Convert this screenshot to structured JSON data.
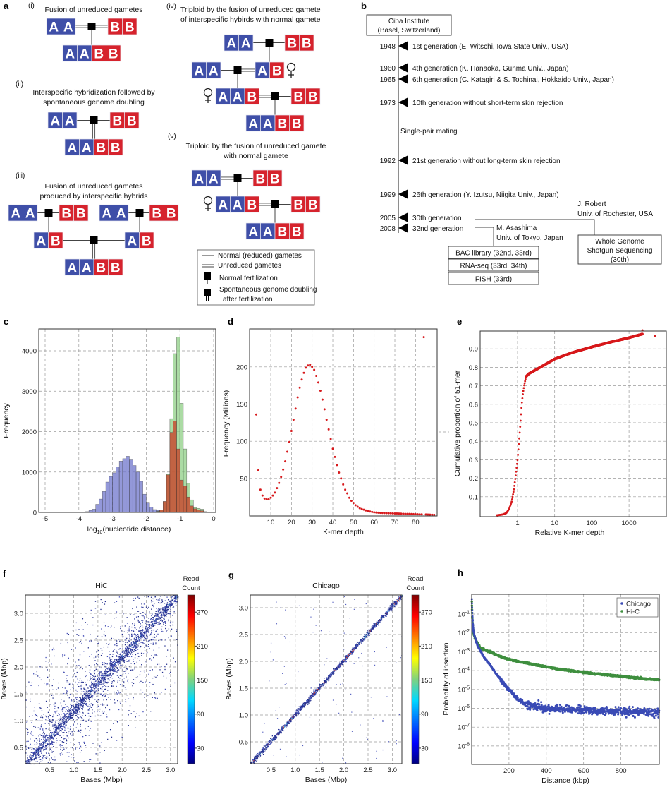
{
  "panel_labels": {
    "a": "a",
    "b": "b",
    "c": "c",
    "d": "d",
    "e": "e",
    "f": "f",
    "g": "g",
    "h": "h"
  },
  "diagram_a": {
    "colors": {
      "A": "#3f4fa8",
      "B": "#d6232d",
      "line": "#444444"
    },
    "panels": [
      {
        "id": "(i)",
        "title": [
          "Fusion of unreduced gametes"
        ],
        "genomes": [
          "AA",
          "BB",
          "AABB"
        ]
      },
      {
        "id": "(ii)",
        "title": [
          "Interspecific hybridization followed by",
          "spontaneous genome doubling"
        ],
        "genomes": [
          "AA",
          "BB",
          "AABB"
        ]
      },
      {
        "id": "(iii)",
        "title": [
          "Fusion of unreduced gametes",
          "produced by interspecific hybrids"
        ],
        "genomes": [
          "AA",
          "BB",
          "AA",
          "BB",
          "AB",
          "AB",
          "AABB"
        ]
      },
      {
        "id": "(iv)",
        "title": [
          "Triploid by the fusion of unreduced gamete",
          "of interspecific hybirds with normal gamete"
        ],
        "genomes": [
          "AA",
          "BB",
          "AA",
          "AB",
          "AAB",
          "BB",
          "AABB"
        ]
      },
      {
        "id": "(v)",
        "title": [
          "Triploid by the fusion of unreduced gamete",
          "with normal gamete"
        ],
        "genomes": [
          "AA",
          "BB",
          "AAB",
          "BB",
          "AABB"
        ]
      }
    ],
    "legend": [
      "Normal (reduced) gametes",
      "Unreduced gametes",
      "Normal fertilization",
      "Spontaneous genome doubling",
      "after fertilization"
    ]
  },
  "timeline_b": {
    "root": [
      "Ciba Institute",
      "(Basel, Switzerland)"
    ],
    "events": [
      {
        "year": "1948",
        "text": "1st generation (E. Witschi, Iowa State Univ., USA)"
      },
      {
        "year": "1960",
        "text": "4th generation (K. Hanaoka, Gunma Univ., Japan)"
      },
      {
        "year": "1965",
        "text": "6th generation (C. Katagiri & S. Tochinai, Hokkaido Univ., Japan)"
      },
      {
        "year": "1973",
        "text": "10th generation without short-term skin rejection"
      },
      {
        "year": "1992",
        "text": "21st generation without long-term skin rejection"
      },
      {
        "year": "1999",
        "text": "26th generation (Y. Izutsu, Niigita Univ., Japan)"
      },
      {
        "year": "2005",
        "text": "30th generation"
      },
      {
        "year": "2008",
        "text": "32nd generation"
      }
    ],
    "note": "Single-pair mating",
    "note_color": "#3b4fc0",
    "branch_robert": [
      "J. Robert",
      "Univ. of Rochester, USA"
    ],
    "robert_box": [
      "Whole Genome",
      "Shotgun Sequencing",
      "(30th)"
    ],
    "branch_asashima": [
      "M. Asashima",
      "Univ. of Tokyo, Japan"
    ],
    "asashima_boxes": [
      "BAC library (32nd, 33rd)",
      "RNA-seq (33rd, 34th)",
      "FISH (33rd)"
    ]
  },
  "chart_data": [
    {
      "type": "bar",
      "xlabel_parts": [
        "log",
        "10",
        "(nucleotide distance)"
      ],
      "ylabel": "Frequency",
      "xlim": [
        -5.2,
        0.05
      ],
      "ylim": [
        0,
        4550
      ],
      "xticks": [
        -5,
        -4,
        -3,
        -2,
        -1,
        0
      ],
      "xtick_labels": [
        "-5",
        "-4",
        "-3",
        "-2",
        "-1",
        "0"
      ],
      "yticks": [
        0,
        1000,
        2000,
        3000,
        4000
      ],
      "ytick_labels": [
        "0",
        "1000",
        "2000",
        "3000",
        "4000"
      ],
      "grid": true,
      "bin_width": 0.1,
      "series": [
        {
          "color": "#6f76cc",
          "x": [
            -4.05,
            -3.95,
            -3.85,
            -3.75,
            -3.65,
            -3.55,
            -3.45,
            -3.35,
            -3.25,
            -3.15,
            -3.05,
            -2.95,
            -2.85,
            -2.75,
            -2.65,
            -2.55,
            -2.45,
            -2.35,
            -2.25,
            -2.15,
            -2.05,
            -1.95,
            -1.85,
            -1.75,
            -1.65,
            -1.55
          ],
          "values": [
            5,
            5,
            10,
            20,
            50,
            80,
            200,
            330,
            520,
            750,
            890,
            980,
            1130,
            1270,
            1330,
            1390,
            1300,
            1160,
            1000,
            770,
            450,
            250,
            130,
            70,
            50,
            30
          ]
        },
        {
          "color": "#8fcf85",
          "x": [
            -1.65,
            -1.55,
            -1.45,
            -1.35,
            -1.25,
            -1.15,
            -1.05,
            -0.95,
            -0.85,
            -0.75,
            -0.65,
            -0.55,
            -0.45,
            -0.35,
            -0.25,
            -0.15
          ],
          "values": [
            30,
            60,
            270,
            950,
            2320,
            3930,
            4340,
            2700,
            1570,
            720,
            310,
            120,
            100,
            80,
            20,
            10
          ]
        },
        {
          "color": "#c8452a",
          "x": [
            -1.65,
            -1.55,
            -1.45,
            -1.35,
            -1.25,
            -1.15,
            -1.05,
            -0.95,
            -0.85,
            -0.75,
            -0.65,
            -0.55,
            -0.45,
            -0.35,
            -0.25,
            -0.15
          ],
          "values": [
            20,
            60,
            270,
            930,
            1980,
            2260,
            1570,
            800,
            650,
            380,
            160,
            90,
            60,
            40,
            10,
            5
          ]
        }
      ]
    },
    {
      "type": "scatter",
      "xlabel": "K-mer depth",
      "ylabel": "Frequency (Millions)",
      "xlim": [
        0,
        90.4
      ],
      "ylim": [
        0,
        251
      ],
      "xticks": [
        10,
        20,
        30,
        40,
        50,
        60,
        70,
        80
      ],
      "xtick_labels": [
        "10",
        "20",
        "30",
        "40",
        "50",
        "60",
        "70",
        "80"
      ],
      "yticks": [
        50,
        100,
        150,
        200
      ],
      "ytick_labels": [
        "50",
        "100",
        "150",
        "200"
      ],
      "grid": true,
      "color": "#d7191c",
      "x_start": 3,
      "x_step": 1,
      "values": [
        136,
        61,
        35,
        27,
        23,
        22,
        22,
        24,
        27,
        31,
        37,
        44,
        52,
        62,
        73,
        86,
        99,
        114,
        129,
        144,
        159,
        172,
        183,
        192,
        199,
        202,
        203,
        200,
        196,
        188,
        179,
        168,
        156,
        143,
        129,
        116,
        103,
        90,
        79,
        68,
        58,
        50,
        42,
        35,
        30,
        24,
        20,
        17,
        14,
        12,
        10,
        9,
        8,
        7,
        6,
        5.5,
        5,
        4.5,
        4.2,
        4,
        3.8,
        3.6,
        3.5,
        3.4,
        3.3,
        3.2,
        3.1,
        3,
        2.9,
        2.8,
        2.7,
        2.6,
        2.5,
        2.4,
        2.3,
        2.2,
        2.1,
        2.0,
        1.9,
        1.8,
        1.7,
        240,
        1.6,
        1.5,
        1.4,
        1.3,
        1.2
      ]
    },
    {
      "type": "scatter",
      "xlabel": "Relative K-mer depth",
      "ylabel": "Cumulative proportion of 51-mer",
      "xscale": "log",
      "xlim": [
        0.1,
        10000
      ],
      "ylim": [
        0,
        1.0
      ],
      "xticks": [
        1,
        10,
        100,
        1000
      ],
      "xtick_labels": [
        "1",
        "10",
        "100",
        "1000"
      ],
      "yticks": [
        0.1,
        0.2,
        0.3,
        0.4,
        0.5,
        0.6,
        0.7,
        0.8,
        0.9
      ],
      "ytick_labels": [
        "0.1",
        "0.2",
        "0.3",
        "0.4",
        "0.5",
        "0.6",
        "0.7",
        "0.8",
        "0.9"
      ],
      "grid": true,
      "color": "#d7191c",
      "points": [
        [
          0.28,
          0.0
        ],
        [
          0.4,
          0.004
        ],
        [
          0.5,
          0.012
        ],
        [
          0.6,
          0.035
        ],
        [
          0.7,
          0.075
        ],
        [
          0.8,
          0.14
        ],
        [
          0.9,
          0.22
        ],
        [
          1.0,
          0.3
        ],
        [
          1.1,
          0.4
        ],
        [
          1.2,
          0.5
        ],
        [
          1.3,
          0.6
        ],
        [
          1.4,
          0.66
        ],
        [
          1.5,
          0.7
        ],
        [
          1.7,
          0.75
        ],
        [
          2,
          0.765
        ],
        [
          3,
          0.785
        ],
        [
          5,
          0.81
        ],
        [
          10,
          0.845
        ],
        [
          30,
          0.88
        ],
        [
          100,
          0.91
        ],
        [
          300,
          0.935
        ],
        [
          1000,
          0.96
        ],
        [
          2300,
          0.98
        ]
      ],
      "outliers": [
        [
          2300,
          1.0
        ],
        [
          5000,
          0.97
        ]
      ]
    },
    {
      "type": "heatmap",
      "title": "HiC",
      "xlabel": "Bases (Mbp)",
      "ylabel": "Bases (Mbp)",
      "xlim": [
        0,
        3.15
      ],
      "ylim": [
        0.2,
        3.35
      ],
      "xticks": [
        0.5,
        1.0,
        1.5,
        2.0,
        2.5,
        3.0
      ],
      "xtick_labels": [
        "0.5",
        "1.0",
        "1.5",
        "2.0",
        "2.5",
        "3.0"
      ],
      "yticks": [
        0.5,
        1.0,
        1.5,
        2.0,
        2.5,
        3.0
      ],
      "ytick_labels": [
        "0.5",
        "1.0",
        "1.5",
        "2.0",
        "2.5",
        "3.0"
      ],
      "grid": true,
      "colorbar": {
        "label": [
          "Read",
          "Count"
        ],
        "colormap": "jet",
        "range": [
          0,
          300
        ],
        "ticks": [
          30,
          90,
          150,
          210,
          270
        ],
        "tick_labels": [
          "30",
          "90",
          "150",
          "210",
          "270"
        ]
      }
    },
    {
      "type": "heatmap",
      "title": "Chicago",
      "xlabel": "Bases (Mbp)",
      "ylabel": "Bases (Mbp)",
      "xlim": [
        0.07,
        3.2
      ],
      "ylim": [
        0.09,
        3.24
      ],
      "xticks": [
        0.5,
        1.0,
        1.5,
        2.0,
        2.5,
        3.0
      ],
      "xtick_labels": [
        "0.5",
        "1.0",
        "1.5",
        "2.0",
        "2.5",
        "3.0"
      ],
      "yticks": [
        0.5,
        1.0,
        1.5,
        2.0,
        2.5,
        3.0
      ],
      "ytick_labels": [
        "0.5",
        "1.0",
        "1.5",
        "2.0",
        "2.5",
        "3.0"
      ],
      "grid": true,
      "colorbar": {
        "label": [
          "Read",
          "Count"
        ],
        "colormap": "jet",
        "range": [
          0,
          300
        ],
        "ticks": [
          30,
          90,
          150,
          210,
          270
        ],
        "tick_labels": [
          "30",
          "90",
          "150",
          "210",
          "270"
        ]
      }
    },
    {
      "type": "scatter",
      "xlabel": "Distance (kbp)",
      "ylabel": "Probability of insertion",
      "yscale": "log",
      "xlim": [
        0,
        1005
      ],
      "ylim": [
        1e-09,
        1
      ],
      "xticks": [
        200,
        400,
        600,
        800
      ],
      "xtick_labels": [
        "200",
        "400",
        "600",
        "800"
      ],
      "yticks": [
        0.1,
        0.01,
        0.001,
        0.0001,
        1e-05,
        1e-06,
        1e-07,
        1e-08
      ],
      "ytick_base": "10",
      "ytick_exponents": [
        "-1",
        "-2",
        "-3",
        "-4",
        "-5",
        "-6",
        "-7",
        "-8"
      ],
      "grid": true,
      "legend_position": "top-right",
      "series": [
        {
          "name": "Chicago",
          "color": "#3a4bb5",
          "points": [
            [
              1,
              0.6
            ],
            [
              5,
              0.05
            ],
            [
              10,
              0.012
            ],
            [
              20,
              0.005
            ],
            [
              50,
              0.001
            ],
            [
              100,
              0.0002
            ],
            [
              150,
              4e-05
            ],
            [
              200,
              1e-05
            ],
            [
              250,
              3e-06
            ],
            [
              300,
              1.5e-06
            ],
            [
              400,
              1e-06
            ],
            [
              600,
              8e-07
            ],
            [
              800,
              7e-07
            ],
            [
              1000,
              6e-07
            ]
          ]
        },
        {
          "name": "Hi-C",
          "color": "#3f8f3f",
          "points": [
            [
              1,
              0.5
            ],
            [
              10,
              0.01
            ],
            [
              30,
              0.003
            ],
            [
              50,
              0.0015
            ],
            [
              100,
              0.001
            ],
            [
              200,
              0.0004
            ],
            [
              300,
              0.00025
            ],
            [
              400,
              0.00016
            ],
            [
              600,
              8e-05
            ],
            [
              800,
              5e-05
            ],
            [
              1000,
              3.2e-05
            ]
          ]
        }
      ]
    }
  ]
}
